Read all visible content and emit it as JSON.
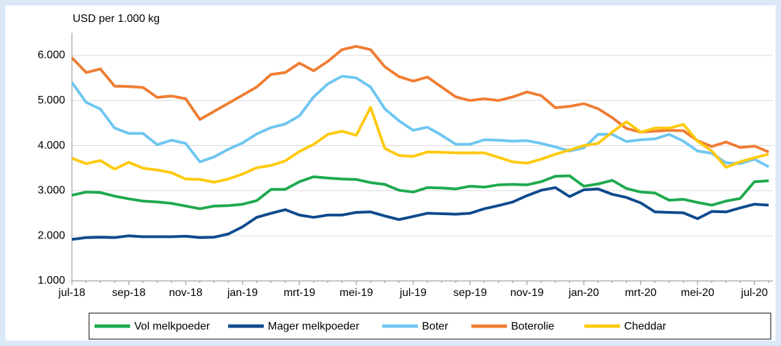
{
  "chart_data": {
    "type": "line",
    "title": "USD per 1.000 kg",
    "categories": [
      "jul-18",
      null,
      null,
      null,
      "sep-18",
      null,
      null,
      null,
      "nov-18",
      null,
      null,
      null,
      "jan-19",
      null,
      null,
      null,
      "mrt-19",
      null,
      null,
      null,
      "mei-19",
      null,
      null,
      null,
      "jul-19",
      null,
      null,
      null,
      "sep-19",
      null,
      null,
      null,
      "nov-19",
      null,
      null,
      null,
      "jan-20",
      null,
      null,
      null,
      "mrt-20",
      null,
      null,
      null,
      "mei-20",
      null,
      null,
      null,
      "jul-20",
      null
    ],
    "ylim": [
      1000,
      6500
    ],
    "yticks": [
      {
        "value": 1000,
        "label": "1.000"
      },
      {
        "value": 2000,
        "label": "2.000"
      },
      {
        "value": 3000,
        "label": "3.000"
      },
      {
        "value": 4000,
        "label": "4.000"
      },
      {
        "value": 5000,
        "label": "5.000"
      },
      {
        "value": 6000,
        "label": "6.000"
      }
    ],
    "grid": true,
    "legend": "bottom",
    "series": [
      {
        "name": "Vol melkpoeder",
        "color": "#1eaa4e",
        "values": [
          2900,
          2970,
          2960,
          2880,
          2820,
          2770,
          2750,
          2720,
          2660,
          2600,
          2660,
          2670,
          2700,
          2780,
          3030,
          3030,
          3200,
          3310,
          3280,
          3260,
          3250,
          3180,
          3140,
          3010,
          2970,
          3070,
          3060,
          3040,
          3100,
          3080,
          3130,
          3140,
          3130,
          3200,
          3320,
          3330,
          3100,
          3150,
          3230,
          3050,
          2970,
          2950,
          2790,
          2810,
          2740,
          2680,
          2770,
          2830,
          3200,
          3220
        ]
      },
      {
        "name": "Mager melkpoeder",
        "color": "#0e4a8e",
        "values": [
          1920,
          1960,
          1970,
          1960,
          2000,
          1980,
          1980,
          1980,
          1990,
          1960,
          1970,
          2040,
          2200,
          2410,
          2500,
          2580,
          2460,
          2410,
          2460,
          2460,
          2520,
          2530,
          2440,
          2360,
          2430,
          2500,
          2490,
          2480,
          2500,
          2600,
          2670,
          2750,
          2890,
          3010,
          3070,
          2870,
          3020,
          3040,
          2920,
          2850,
          2730,
          2530,
          2520,
          2510,
          2380,
          2540,
          2530,
          2620,
          2700,
          2680
        ]
      },
      {
        "name": "Boter",
        "color": "#6ec6f0",
        "values": [
          5400,
          4960,
          4810,
          4390,
          4270,
          4270,
          4020,
          4120,
          4050,
          3640,
          3750,
          3920,
          4060,
          4260,
          4400,
          4480,
          4660,
          5080,
          5370,
          5540,
          5500,
          5300,
          4820,
          4550,
          4340,
          4410,
          4230,
          4030,
          4030,
          4130,
          4120,
          4100,
          4110,
          4050,
          3970,
          3880,
          3950,
          4250,
          4250,
          4090,
          4130,
          4150,
          4250,
          4100,
          3880,
          3830,
          3620,
          3600,
          3700,
          3530
        ]
      },
      {
        "name": "Boterolie",
        "color": "#ef7d33",
        "values": [
          5950,
          5620,
          5700,
          5320,
          5310,
          5290,
          5070,
          5100,
          5040,
          4580,
          4760,
          4940,
          5120,
          5300,
          5580,
          5620,
          5830,
          5660,
          5870,
          6130,
          6200,
          6130,
          5750,
          5530,
          5430,
          5520,
          5300,
          5080,
          5000,
          5040,
          5000,
          5080,
          5190,
          5110,
          4840,
          4870,
          4930,
          4820,
          4620,
          4380,
          4300,
          4320,
          4340,
          4330,
          4110,
          3980,
          4080,
          3960,
          3990,
          3860
        ]
      },
      {
        "name": "Cheddar",
        "color": "#ffc90e",
        "values": [
          3720,
          3600,
          3670,
          3480,
          3630,
          3500,
          3460,
          3400,
          3260,
          3250,
          3190,
          3260,
          3370,
          3510,
          3560,
          3660,
          3870,
          4030,
          4250,
          4320,
          4230,
          4850,
          3940,
          3780,
          3760,
          3860,
          3850,
          3840,
          3840,
          3840,
          3740,
          3640,
          3610,
          3700,
          3810,
          3900,
          4000,
          4050,
          4300,
          4530,
          4300,
          4390,
          4390,
          4470,
          4100,
          3880,
          3520,
          3640,
          3730,
          3810
        ]
      }
    ]
  }
}
